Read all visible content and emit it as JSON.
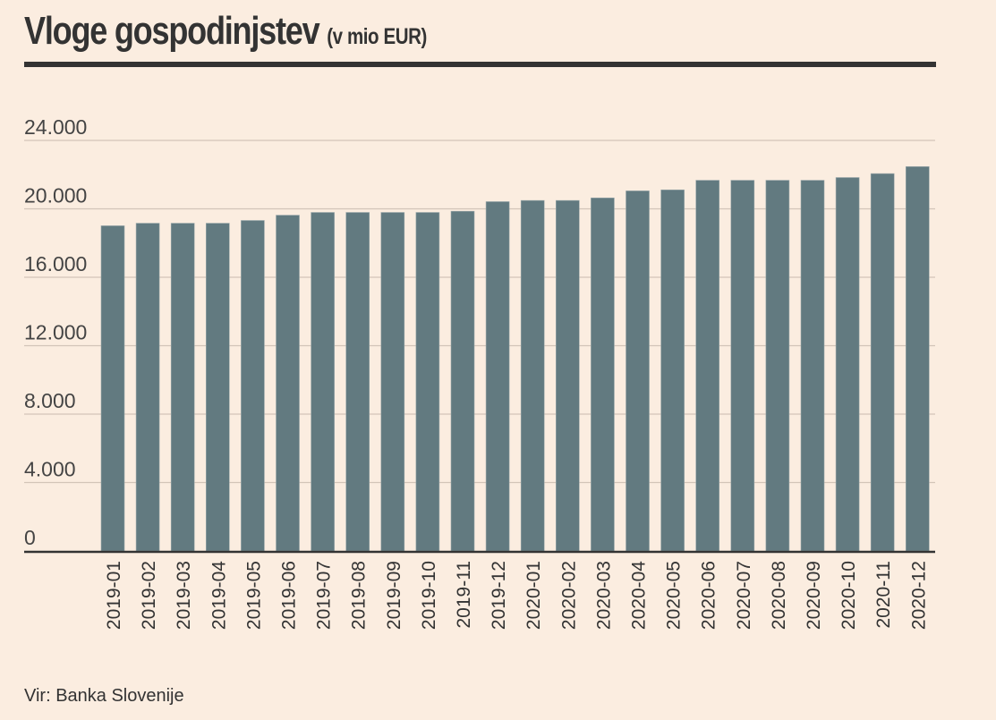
{
  "chart_data": {
    "type": "bar",
    "title": "Vloge gospodinjstev",
    "subtitle": "(v mio EUR)",
    "xlabel": "",
    "ylabel": "",
    "ylim": [
      0,
      24000
    ],
    "yticks": [
      0,
      4000,
      8000,
      12000,
      16000,
      20000,
      24000
    ],
    "ytick_labels": [
      "0",
      "4.000",
      "8.000",
      "12.000",
      "16.000",
      "20.000",
      "24.000"
    ],
    "grid": true,
    "categories": [
      "2019-01",
      "2019-02",
      "2019-03",
      "2019-04",
      "2019-05",
      "2019-06",
      "2019-07",
      "2019-08",
      "2019-09",
      "2019-10",
      "2019-11",
      "2019-12",
      "2020-01",
      "2020-02",
      "2020-03",
      "2020-04",
      "2020-05",
      "2020-06",
      "2020-07",
      "2020-08",
      "2020-09",
      "2020-10",
      "2020-11",
      "2020-12"
    ],
    "values": [
      19010,
      19160,
      19160,
      19160,
      19320,
      19630,
      19790,
      19790,
      19790,
      19790,
      19860,
      20420,
      20490,
      20490,
      20640,
      21050,
      21110,
      21670,
      21670,
      21670,
      21670,
      21830,
      22060,
      22470
    ],
    "bar_color": "#627a80",
    "source": "Vir: Banka Slovenije"
  }
}
